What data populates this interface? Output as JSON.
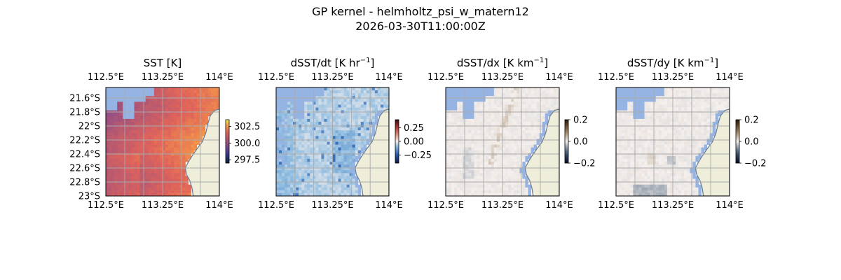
{
  "figure": {
    "title_line1": "GP kernel - helmholtz_psi_w_matern12",
    "title_line2": "2026-03-30T11:00:00Z"
  },
  "colors": {
    "land": "#efeedb",
    "coast": "#6d7e93",
    "masked": "#96b4e3",
    "grid": "#aaaaaa"
  },
  "chart_data": [
    {
      "type": "heatmap",
      "title": "SST [K]",
      "title_base": "SST [K]",
      "title_sup": "",
      "title_tail": "",
      "x_ticks": [
        "112.5°E",
        "113.25°E",
        "114°E"
      ],
      "x_tick_values": [
        112.5,
        113.25,
        114.0
      ],
      "y_ticks": [
        "21.6°S",
        "21.8°S",
        "22°S",
        "22.2°S",
        "22.4°S",
        "22.6°S",
        "22.8°S",
        "23°S"
      ],
      "y_tick_values": [
        -21.6,
        -21.8,
        -22.0,
        -22.2,
        -22.4,
        -22.6,
        -22.8,
        -23.0
      ],
      "xlim": [
        112.5,
        114.0
      ],
      "ylim": [
        -23.0,
        -21.45
      ],
      "colorbar": {
        "ticks": [
          "302.5",
          "300.0",
          "297.5"
        ],
        "tick_values": [
          302.5,
          300.0,
          297.5
        ],
        "range": [
          297.0,
          303.5
        ],
        "colormap": "thermal"
      },
      "grid": true,
      "colormap": "thermal"
    },
    {
      "type": "heatmap",
      "title": "dSST/dt [K hr−1]",
      "title_base": "dSST/dt [K hr",
      "title_sup": "−1",
      "title_tail": "]",
      "x_ticks": [
        "112.5°E",
        "113.25°E",
        "114°E"
      ],
      "x_tick_values": [
        112.5,
        113.25,
        114.0
      ],
      "y_ticks": [],
      "y_tick_values": [],
      "xlim": [
        112.5,
        114.0
      ],
      "ylim": [
        -23.0,
        -21.45
      ],
      "colorbar": {
        "ticks": [
          "0.25",
          "0.00",
          "−0.25"
        ],
        "tick_values": [
          0.25,
          0.0,
          -0.25
        ],
        "range": [
          -0.4,
          0.4
        ],
        "colormap": "balance"
      },
      "grid": true,
      "colormap": "balance"
    },
    {
      "type": "heatmap",
      "title": "dSST/dx [K km−1]",
      "title_base": "dSST/dx [K km",
      "title_sup": "−1",
      "title_tail": "]",
      "x_ticks": [
        "112.5°E",
        "113.25°E",
        "114°E"
      ],
      "x_tick_values": [
        112.5,
        113.25,
        114.0
      ],
      "y_ticks": [],
      "y_tick_values": [],
      "xlim": [
        112.5,
        114.0
      ],
      "ylim": [
        -23.0,
        -21.45
      ],
      "colorbar": {
        "ticks": [
          "0.2",
          "0.0",
          "−0.2"
        ],
        "tick_values": [
          0.2,
          0.0,
          -0.2
        ],
        "range": [
          -0.2,
          0.2
        ],
        "colormap": "diff"
      },
      "grid": true,
      "colormap": "diff"
    },
    {
      "type": "heatmap",
      "title": "dSST/dy [K km−1]",
      "title_base": "dSST/dy [K km",
      "title_sup": "−1",
      "title_tail": "]",
      "x_ticks": [
        "112.5°E",
        "113.25°E",
        "114°E"
      ],
      "x_tick_values": [
        112.5,
        113.25,
        114.0
      ],
      "y_ticks": [],
      "y_tick_values": [],
      "xlim": [
        112.5,
        114.0
      ],
      "ylim": [
        -23.0,
        -21.45
      ],
      "colorbar": {
        "ticks": [
          "0.2",
          "0.0",
          "−0.2"
        ],
        "tick_values": [
          0.2,
          0.0,
          -0.2
        ],
        "range": [
          -0.2,
          0.2
        ],
        "colormap": "diff"
      },
      "grid": true,
      "colormap": "diff"
    }
  ]
}
